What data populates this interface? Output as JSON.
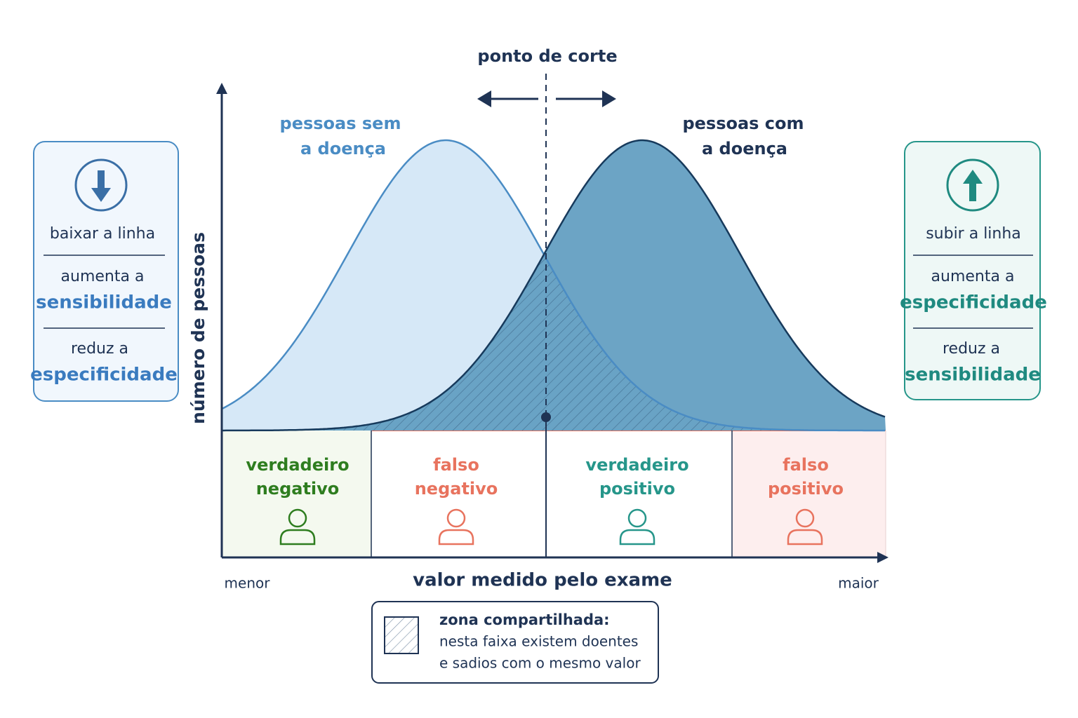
{
  "title": "ponto de corte",
  "curves": [
    {
      "label": [
        "pessoas sem",
        "a doença"
      ]
    },
    {
      "label": [
        "pessoas com",
        "a doença"
      ]
    }
  ],
  "y_axis": "número de pessoas",
  "x_axis": {
    "title": "valor medido pelo exame",
    "min": "menor",
    "max": "maior"
  },
  "left_panel": {
    "action": "baixar a linha",
    "first": [
      "aumenta a",
      "sensibilidade"
    ],
    "second": [
      "reduz a",
      "especificidade"
    ]
  },
  "right_panel": {
    "action": "subir a linha",
    "first": [
      "aumenta a",
      "especificidade"
    ],
    "second": [
      "reduz a",
      "sensibilidade"
    ]
  },
  "zones": [
    {
      "label": [
        "verdadeiro",
        "negativo"
      ]
    },
    {
      "label": [
        "falso",
        "negativo"
      ]
    },
    {
      "label": [
        "verdadeiro",
        "positivo"
      ]
    },
    {
      "label": [
        "falso",
        "positivo"
      ]
    }
  ],
  "legend": {
    "title": "zona compartilhada:",
    "lines": [
      "nesta faixa existem doentes",
      "e sadios com o mesmo valor"
    ]
  }
}
